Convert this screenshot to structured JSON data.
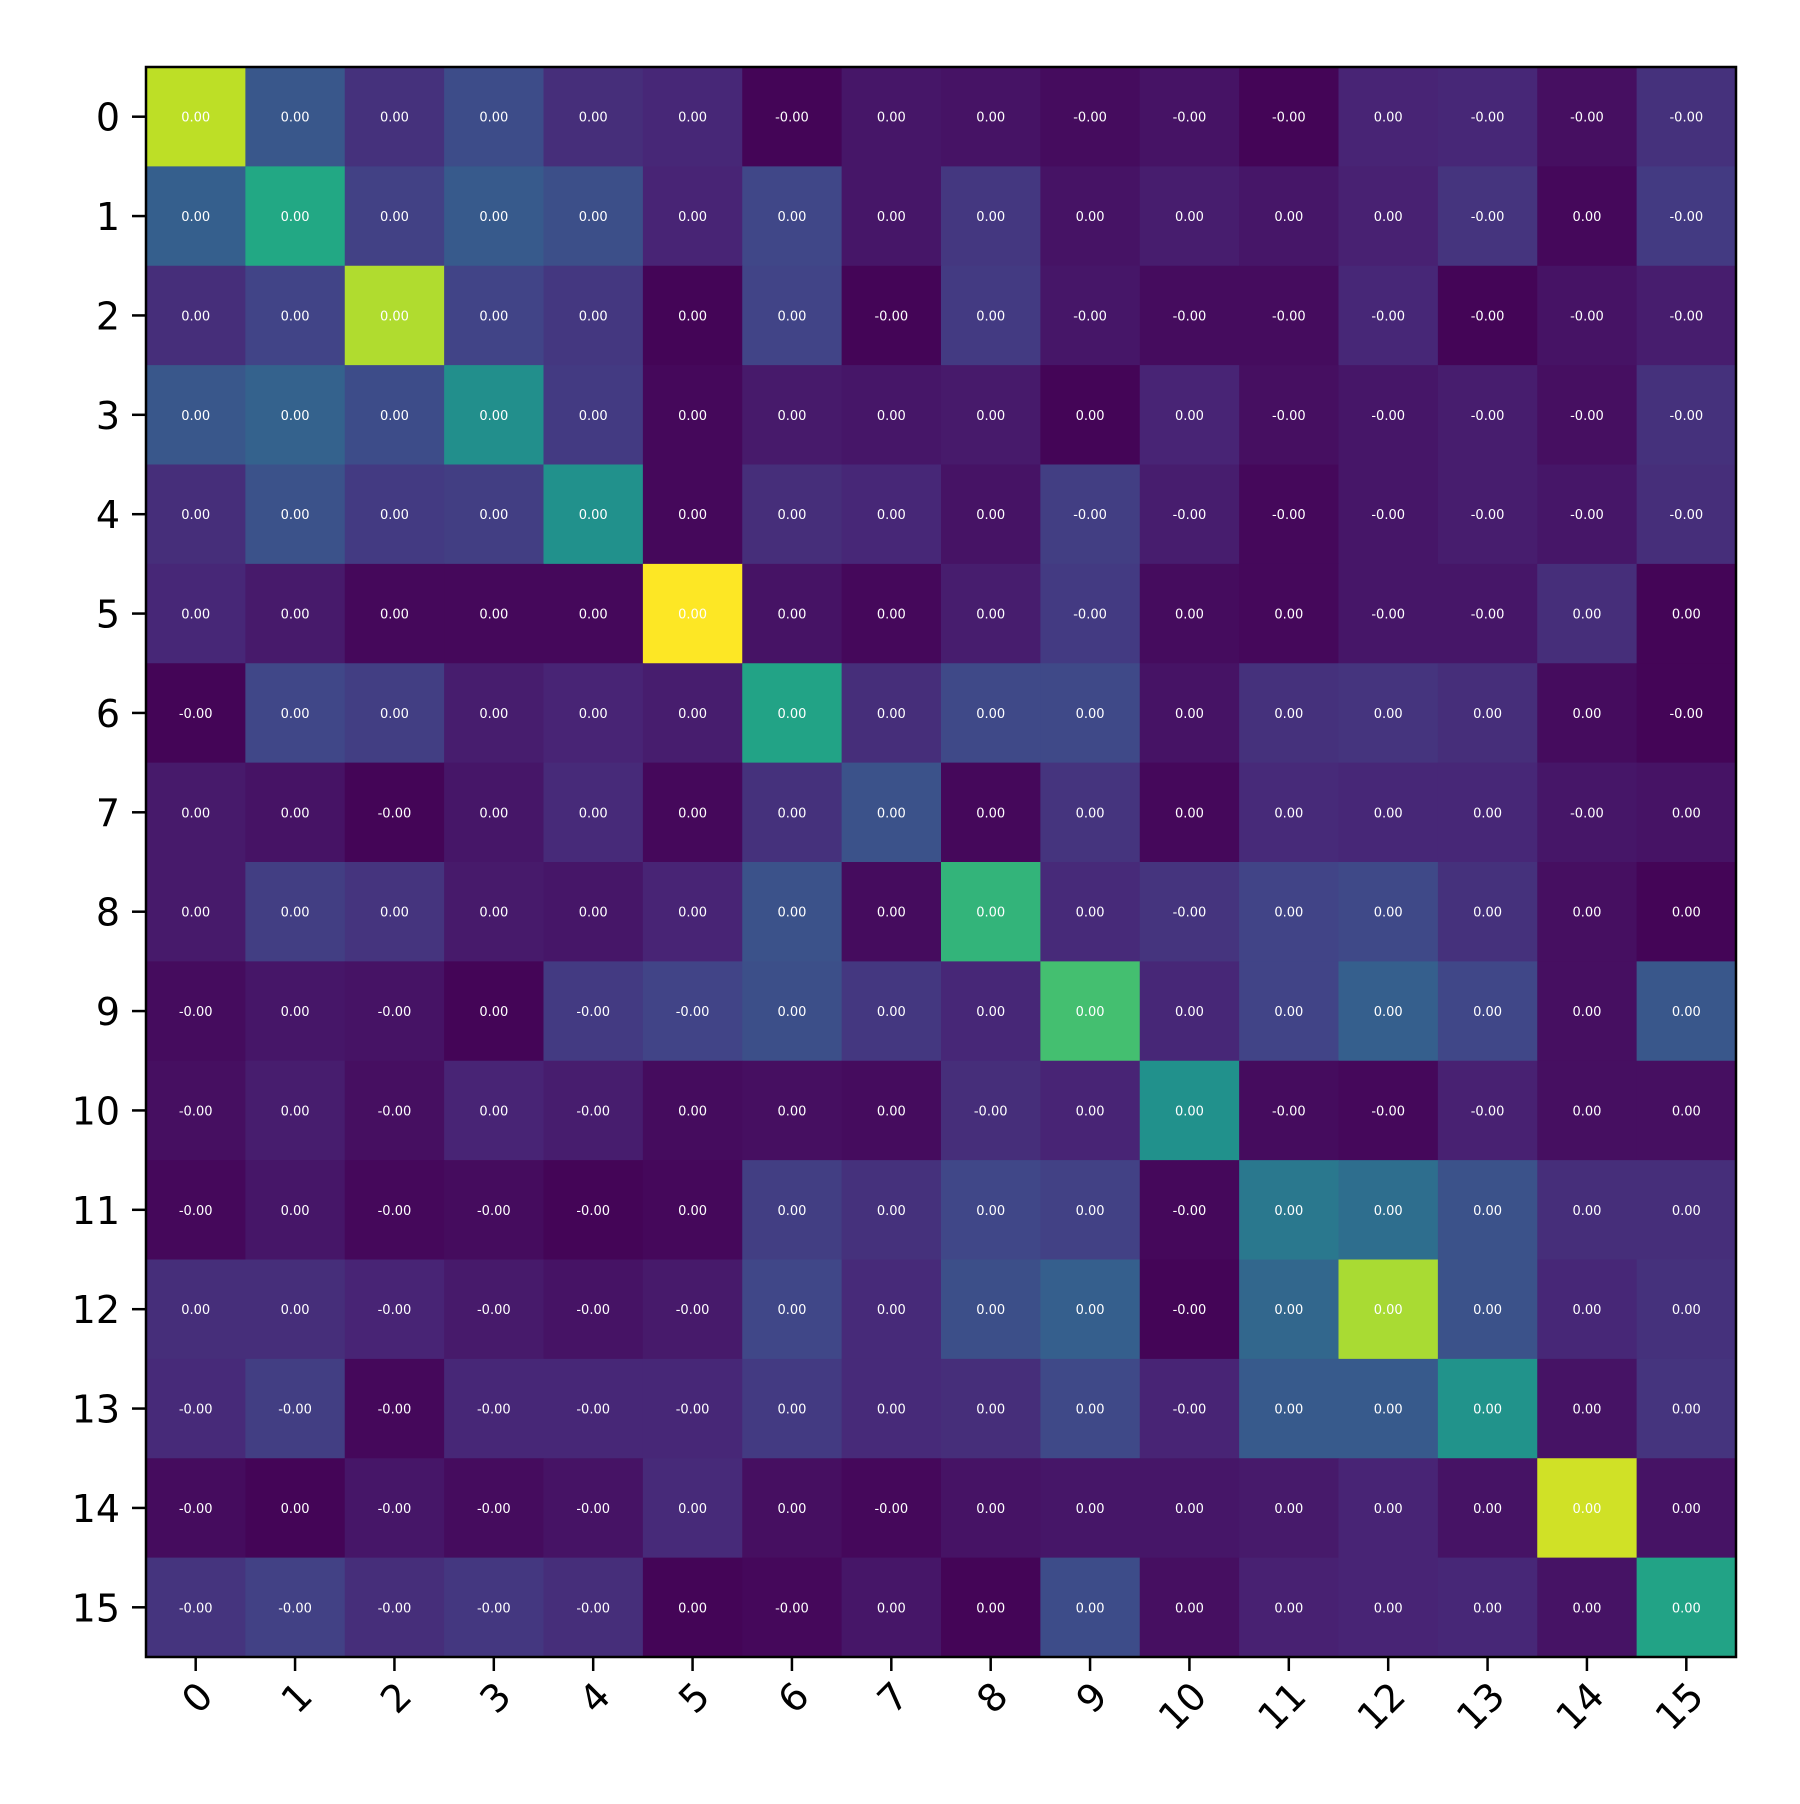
{
  "chart_data": {
    "type": "heatmap",
    "title": "",
    "xlabel": "",
    "ylabel": "",
    "x_tick_labels": [
      "0",
      "1",
      "2",
      "3",
      "4",
      "5",
      "6",
      "7",
      "8",
      "9",
      "10",
      "11",
      "12",
      "13",
      "14",
      "15"
    ],
    "y_tick_labels": [
      "0",
      "1",
      "2",
      "3",
      "4",
      "5",
      "6",
      "7",
      "8",
      "9",
      "10",
      "11",
      "12",
      "13",
      "14",
      "15"
    ],
    "x_tick_rotation_deg": 45,
    "colormap": "viridis",
    "grid": false,
    "legend": "none",
    "cell_labels": [
      [
        "0.00",
        "0.00",
        "0.00",
        "0.00",
        "0.00",
        "0.00",
        "-0.00",
        "0.00",
        "0.00",
        "-0.00",
        "-0.00",
        "-0.00",
        "0.00",
        "-0.00",
        "-0.00",
        "-0.00"
      ],
      [
        "0.00",
        "0.00",
        "0.00",
        "0.00",
        "0.00",
        "0.00",
        "0.00",
        "0.00",
        "0.00",
        "0.00",
        "0.00",
        "0.00",
        "0.00",
        "-0.00",
        "0.00",
        "-0.00"
      ],
      [
        "0.00",
        "0.00",
        "0.00",
        "0.00",
        "0.00",
        "0.00",
        "0.00",
        "-0.00",
        "0.00",
        "-0.00",
        "-0.00",
        "-0.00",
        "-0.00",
        "-0.00",
        "-0.00",
        "-0.00"
      ],
      [
        "0.00",
        "0.00",
        "0.00",
        "0.00",
        "0.00",
        "0.00",
        "0.00",
        "0.00",
        "0.00",
        "0.00",
        "0.00",
        "-0.00",
        "-0.00",
        "-0.00",
        "-0.00",
        "-0.00"
      ],
      [
        "0.00",
        "0.00",
        "0.00",
        "0.00",
        "0.00",
        "0.00",
        "0.00",
        "0.00",
        "0.00",
        "-0.00",
        "-0.00",
        "-0.00",
        "-0.00",
        "-0.00",
        "-0.00",
        "-0.00"
      ],
      [
        "0.00",
        "0.00",
        "0.00",
        "0.00",
        "0.00",
        "0.00",
        "0.00",
        "0.00",
        "0.00",
        "-0.00",
        "0.00",
        "0.00",
        "-0.00",
        "-0.00",
        "0.00",
        "0.00"
      ],
      [
        "-0.00",
        "0.00",
        "0.00",
        "0.00",
        "0.00",
        "0.00",
        "0.00",
        "0.00",
        "0.00",
        "0.00",
        "0.00",
        "0.00",
        "0.00",
        "0.00",
        "0.00",
        "-0.00"
      ],
      [
        "0.00",
        "0.00",
        "-0.00",
        "0.00",
        "0.00",
        "0.00",
        "0.00",
        "0.00",
        "0.00",
        "0.00",
        "0.00",
        "0.00",
        "0.00",
        "0.00",
        "-0.00",
        "0.00"
      ],
      [
        "0.00",
        "0.00",
        "0.00",
        "0.00",
        "0.00",
        "0.00",
        "0.00",
        "0.00",
        "0.00",
        "0.00",
        "-0.00",
        "0.00",
        "0.00",
        "0.00",
        "0.00",
        "0.00"
      ],
      [
        "-0.00",
        "0.00",
        "-0.00",
        "0.00",
        "-0.00",
        "-0.00",
        "0.00",
        "0.00",
        "0.00",
        "0.00",
        "0.00",
        "0.00",
        "0.00",
        "0.00",
        "0.00",
        "0.00"
      ],
      [
        "-0.00",
        "0.00",
        "-0.00",
        "0.00",
        "-0.00",
        "0.00",
        "0.00",
        "0.00",
        "-0.00",
        "0.00",
        "0.00",
        "-0.00",
        "-0.00",
        "-0.00",
        "0.00",
        "0.00"
      ],
      [
        "-0.00",
        "0.00",
        "-0.00",
        "-0.00",
        "-0.00",
        "0.00",
        "0.00",
        "0.00",
        "0.00",
        "0.00",
        "-0.00",
        "0.00",
        "0.00",
        "0.00",
        "0.00",
        "0.00"
      ],
      [
        "0.00",
        "0.00",
        "-0.00",
        "-0.00",
        "-0.00",
        "-0.00",
        "0.00",
        "0.00",
        "0.00",
        "0.00",
        "-0.00",
        "0.00",
        "0.00",
        "0.00",
        "0.00",
        "0.00"
      ],
      [
        "-0.00",
        "-0.00",
        "-0.00",
        "-0.00",
        "-0.00",
        "-0.00",
        "0.00",
        "0.00",
        "0.00",
        "0.00",
        "-0.00",
        "0.00",
        "0.00",
        "0.00",
        "0.00",
        "0.00"
      ],
      [
        "-0.00",
        "0.00",
        "-0.00",
        "-0.00",
        "-0.00",
        "0.00",
        "0.00",
        "-0.00",
        "0.00",
        "0.00",
        "0.00",
        "0.00",
        "0.00",
        "0.00",
        "0.00",
        "0.00"
      ],
      [
        "-0.00",
        "-0.00",
        "-0.00",
        "-0.00",
        "-0.00",
        "0.00",
        "-0.00",
        "0.00",
        "0.00",
        "0.00",
        "0.00",
        "0.00",
        "0.00",
        "0.00",
        "0.00",
        "0.00"
      ]
    ],
    "color_intensity": [
      [
        0.9,
        0.27,
        0.14,
        0.23,
        0.13,
        0.11,
        0.01,
        0.06,
        0.05,
        0.03,
        0.05,
        0.01,
        0.1,
        0.11,
        0.04,
        0.14
      ],
      [
        0.3,
        0.6,
        0.19,
        0.28,
        0.24,
        0.1,
        0.21,
        0.06,
        0.16,
        0.05,
        0.08,
        0.06,
        0.09,
        0.15,
        0.02,
        0.17
      ],
      [
        0.13,
        0.2,
        0.88,
        0.2,
        0.16,
        0.01,
        0.2,
        0.01,
        0.17,
        0.06,
        0.03,
        0.03,
        0.11,
        0.01,
        0.05,
        0.08
      ],
      [
        0.27,
        0.31,
        0.23,
        0.49,
        0.17,
        0.02,
        0.07,
        0.06,
        0.07,
        0.01,
        0.1,
        0.04,
        0.06,
        0.08,
        0.04,
        0.14
      ],
      [
        0.13,
        0.25,
        0.17,
        0.18,
        0.5,
        0.02,
        0.13,
        0.11,
        0.05,
        0.18,
        0.08,
        0.02,
        0.06,
        0.08,
        0.06,
        0.13
      ],
      [
        0.11,
        0.07,
        0.02,
        0.02,
        0.02,
        1.0,
        0.05,
        0.02,
        0.08,
        0.17,
        0.03,
        0.02,
        0.06,
        0.06,
        0.13,
        0.01
      ],
      [
        0.01,
        0.21,
        0.18,
        0.08,
        0.1,
        0.08,
        0.58,
        0.13,
        0.22,
        0.22,
        0.05,
        0.14,
        0.15,
        0.13,
        0.03,
        0.01
      ],
      [
        0.07,
        0.05,
        0.01,
        0.06,
        0.12,
        0.02,
        0.14,
        0.25,
        0.02,
        0.15,
        0.02,
        0.12,
        0.11,
        0.11,
        0.06,
        0.05
      ],
      [
        0.07,
        0.18,
        0.15,
        0.07,
        0.06,
        0.1,
        0.25,
        0.03,
        0.65,
        0.12,
        0.15,
        0.2,
        0.22,
        0.14,
        0.04,
        0.01
      ],
      [
        0.03,
        0.06,
        0.05,
        0.01,
        0.17,
        0.2,
        0.24,
        0.16,
        0.11,
        0.7,
        0.11,
        0.2,
        0.3,
        0.21,
        0.04,
        0.27
      ],
      [
        0.04,
        0.08,
        0.04,
        0.1,
        0.08,
        0.03,
        0.04,
        0.03,
        0.13,
        0.1,
        0.5,
        0.03,
        0.02,
        0.09,
        0.04,
        0.04
      ],
      [
        0.02,
        0.06,
        0.02,
        0.03,
        0.01,
        0.02,
        0.18,
        0.14,
        0.21,
        0.19,
        0.02,
        0.4,
        0.36,
        0.25,
        0.13,
        0.13
      ],
      [
        0.13,
        0.13,
        0.1,
        0.07,
        0.05,
        0.07,
        0.21,
        0.12,
        0.24,
        0.3,
        0.01,
        0.33,
        0.87,
        0.25,
        0.11,
        0.14
      ],
      [
        0.12,
        0.18,
        0.02,
        0.11,
        0.11,
        0.11,
        0.17,
        0.12,
        0.13,
        0.22,
        0.1,
        0.28,
        0.28,
        0.51,
        0.05,
        0.15
      ],
      [
        0.03,
        0.01,
        0.06,
        0.03,
        0.05,
        0.12,
        0.04,
        0.02,
        0.05,
        0.06,
        0.06,
        0.07,
        0.1,
        0.05,
        0.93,
        0.05
      ],
      [
        0.15,
        0.19,
        0.13,
        0.16,
        0.13,
        0.01,
        0.02,
        0.06,
        0.01,
        0.23,
        0.04,
        0.09,
        0.1,
        0.11,
        0.05,
        0.58
      ]
    ]
  }
}
